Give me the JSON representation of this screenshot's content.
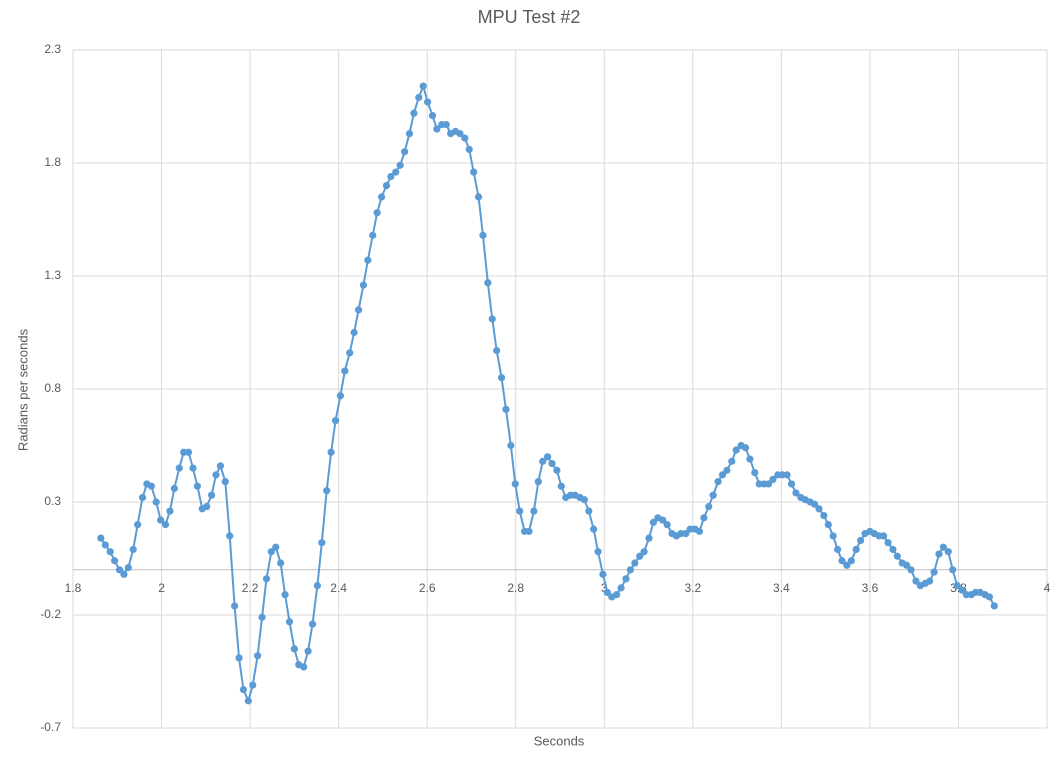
{
  "chart_data": {
    "type": "line",
    "title": "MPU Test #2",
    "x_label": "Seconds",
    "y_label": "Radians per seconds",
    "color": "#5b9bd5",
    "grid": true,
    "xlim": [
      1.8,
      4
    ],
    "xticks": [
      1.8,
      2,
      2.2,
      2.4,
      2.6,
      2.8,
      3,
      3.2,
      3.4,
      3.6,
      3.8,
      4
    ],
    "ylim": [
      -0.7,
      2.3
    ],
    "yticks": [
      -0.7,
      -0.2,
      0.3,
      0.8,
      1.3,
      1.8,
      2.3
    ],
    "x": [
      1.863,
      1.873,
      1.884,
      1.894,
      1.905,
      1.915,
      1.925,
      1.936,
      1.946,
      1.957,
      1.967,
      1.977,
      1.988,
      1.998,
      2.009,
      2.019,
      2.029,
      2.04,
      2.05,
      2.061,
      2.071,
      2.081,
      2.092,
      2.102,
      2.113,
      2.123,
      2.133,
      2.144,
      2.154,
      2.165,
      2.175,
      2.185,
      2.196,
      2.206,
      2.217,
      2.227,
      2.237,
      2.248,
      2.258,
      2.269,
      2.279,
      2.289,
      2.3,
      2.31,
      2.321,
      2.331,
      2.341,
      2.352,
      2.362,
      2.373,
      2.383,
      2.393,
      2.404,
      2.414,
      2.425,
      2.435,
      2.445,
      2.456,
      2.466,
      2.477,
      2.487,
      2.497,
      2.508,
      2.518,
      2.529,
      2.539,
      2.549,
      2.56,
      2.57,
      2.581,
      2.591,
      2.601,
      2.612,
      2.622,
      2.633,
      2.643,
      2.653,
      2.664,
      2.674,
      2.685,
      2.695,
      2.705,
      2.716,
      2.726,
      2.737,
      2.747,
      2.757,
      2.768,
      2.778,
      2.789,
      2.799,
      2.809,
      2.82,
      2.83,
      2.841,
      2.851,
      2.861,
      2.872,
      2.882,
      2.893,
      2.903,
      2.913,
      2.924,
      2.934,
      2.945,
      2.955,
      2.965,
      2.976,
      2.986,
      2.997,
      3.007,
      3.017,
      3.028,
      3.038,
      3.049,
      3.059,
      3.069,
      3.08,
      3.09,
      3.101,
      3.111,
      3.121,
      3.132,
      3.142,
      3.153,
      3.163,
      3.173,
      3.184,
      3.194,
      3.205,
      3.215,
      3.225,
      3.236,
      3.246,
      3.257,
      3.267,
      3.277,
      3.288,
      3.298,
      3.309,
      3.319,
      3.329,
      3.34,
      3.35,
      3.361,
      3.371,
      3.381,
      3.392,
      3.402,
      3.413,
      3.423,
      3.433,
      3.444,
      3.454,
      3.465,
      3.475,
      3.485,
      3.496,
      3.506,
      3.517,
      3.527,
      3.537,
      3.548,
      3.558,
      3.569,
      3.579,
      3.589,
      3.6,
      3.61,
      3.621,
      3.631,
      3.641,
      3.652,
      3.662,
      3.673,
      3.683,
      3.693,
      3.704,
      3.714,
      3.725,
      3.735,
      3.745,
      3.756,
      3.766,
      3.777,
      3.787,
      3.797,
      3.808,
      3.818,
      3.829,
      3.839,
      3.849,
      3.86,
      3.87,
      3.881
    ],
    "values": [
      0.14,
      0.11,
      0.08,
      0.04,
      0.0,
      -0.02,
      0.01,
      0.09,
      0.2,
      0.32,
      0.38,
      0.37,
      0.3,
      0.22,
      0.2,
      0.26,
      0.36,
      0.45,
      0.52,
      0.52,
      0.45,
      0.37,
      0.27,
      0.28,
      0.33,
      0.42,
      0.46,
      0.39,
      0.15,
      -0.16,
      -0.39,
      -0.53,
      -0.58,
      -0.51,
      -0.38,
      -0.21,
      -0.04,
      0.08,
      0.1,
      0.03,
      -0.11,
      -0.23,
      -0.35,
      -0.42,
      -0.43,
      -0.36,
      -0.24,
      -0.07,
      0.12,
      0.35,
      0.52,
      0.66,
      0.77,
      0.88,
      0.96,
      1.05,
      1.15,
      1.26,
      1.37,
      1.48,
      1.58,
      1.65,
      1.7,
      1.74,
      1.76,
      1.79,
      1.85,
      1.93,
      2.02,
      2.09,
      2.14,
      2.07,
      2.01,
      1.95,
      1.97,
      1.97,
      1.93,
      1.94,
      1.93,
      1.91,
      1.86,
      1.76,
      1.65,
      1.48,
      1.27,
      1.11,
      0.97,
      0.85,
      0.71,
      0.55,
      0.38,
      0.26,
      0.17,
      0.17,
      0.26,
      0.39,
      0.48,
      0.5,
      0.47,
      0.44,
      0.37,
      0.32,
      0.33,
      0.33,
      0.32,
      0.31,
      0.26,
      0.18,
      0.08,
      -0.02,
      -0.1,
      -0.12,
      -0.11,
      -0.08,
      -0.04,
      0.0,
      0.03,
      0.06,
      0.08,
      0.14,
      0.21,
      0.23,
      0.22,
      0.2,
      0.16,
      0.15,
      0.16,
      0.16,
      0.18,
      0.18,
      0.17,
      0.23,
      0.28,
      0.33,
      0.39,
      0.42,
      0.44,
      0.48,
      0.53,
      0.55,
      0.54,
      0.49,
      0.43,
      0.38,
      0.38,
      0.38,
      0.4,
      0.42,
      0.42,
      0.42,
      0.38,
      0.34,
      0.32,
      0.31,
      0.3,
      0.29,
      0.27,
      0.24,
      0.2,
      0.15,
      0.09,
      0.04,
      0.02,
      0.04,
      0.09,
      0.13,
      0.16,
      0.17,
      0.16,
      0.15,
      0.15,
      0.12,
      0.09,
      0.06,
      0.03,
      0.02,
      0.0,
      -0.05,
      -0.07,
      -0.06,
      -0.05,
      -0.01,
      0.07,
      0.1,
      0.08,
      0.0,
      -0.07,
      -0.09,
      -0.11,
      -0.11,
      -0.1,
      -0.1,
      -0.11,
      -0.12,
      -0.16
    ]
  }
}
